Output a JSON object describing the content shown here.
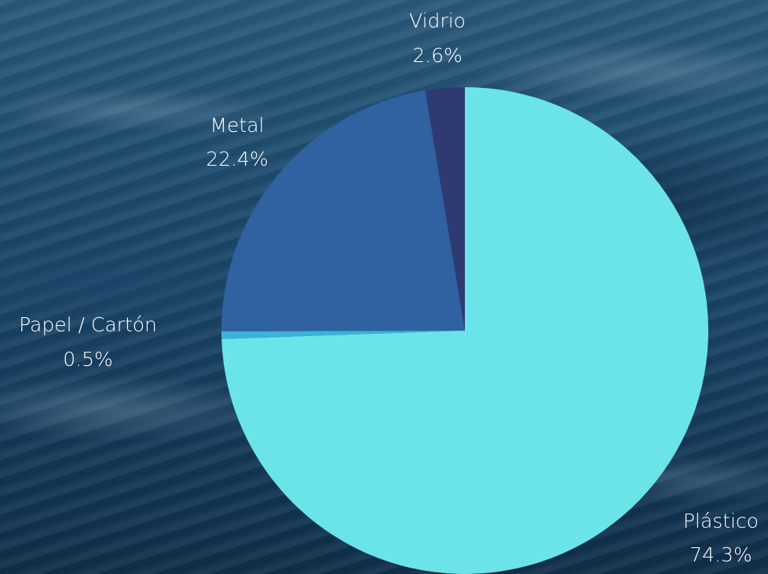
{
  "chart_data": {
    "type": "pie",
    "slices": [
      {
        "label": "Plástico",
        "value": 74.3,
        "value_label": "74.3%",
        "color": "#6ae4e8"
      },
      {
        "label": "Papel / Cartón",
        "value": 0.5,
        "value_label": "0.5%",
        "color": "#3ab2da"
      },
      {
        "label": "Metal",
        "value": 22.4,
        "value_label": "22.4%",
        "color": "#3061a0"
      },
      {
        "label": "Vidrio",
        "value": 2.6,
        "value_label": "2.6%",
        "color": "#2f3a72"
      }
    ],
    "start": "12 o'clock",
    "direction": "clockwise",
    "legend": "none",
    "data_labels": "outside, name above percent"
  }
}
